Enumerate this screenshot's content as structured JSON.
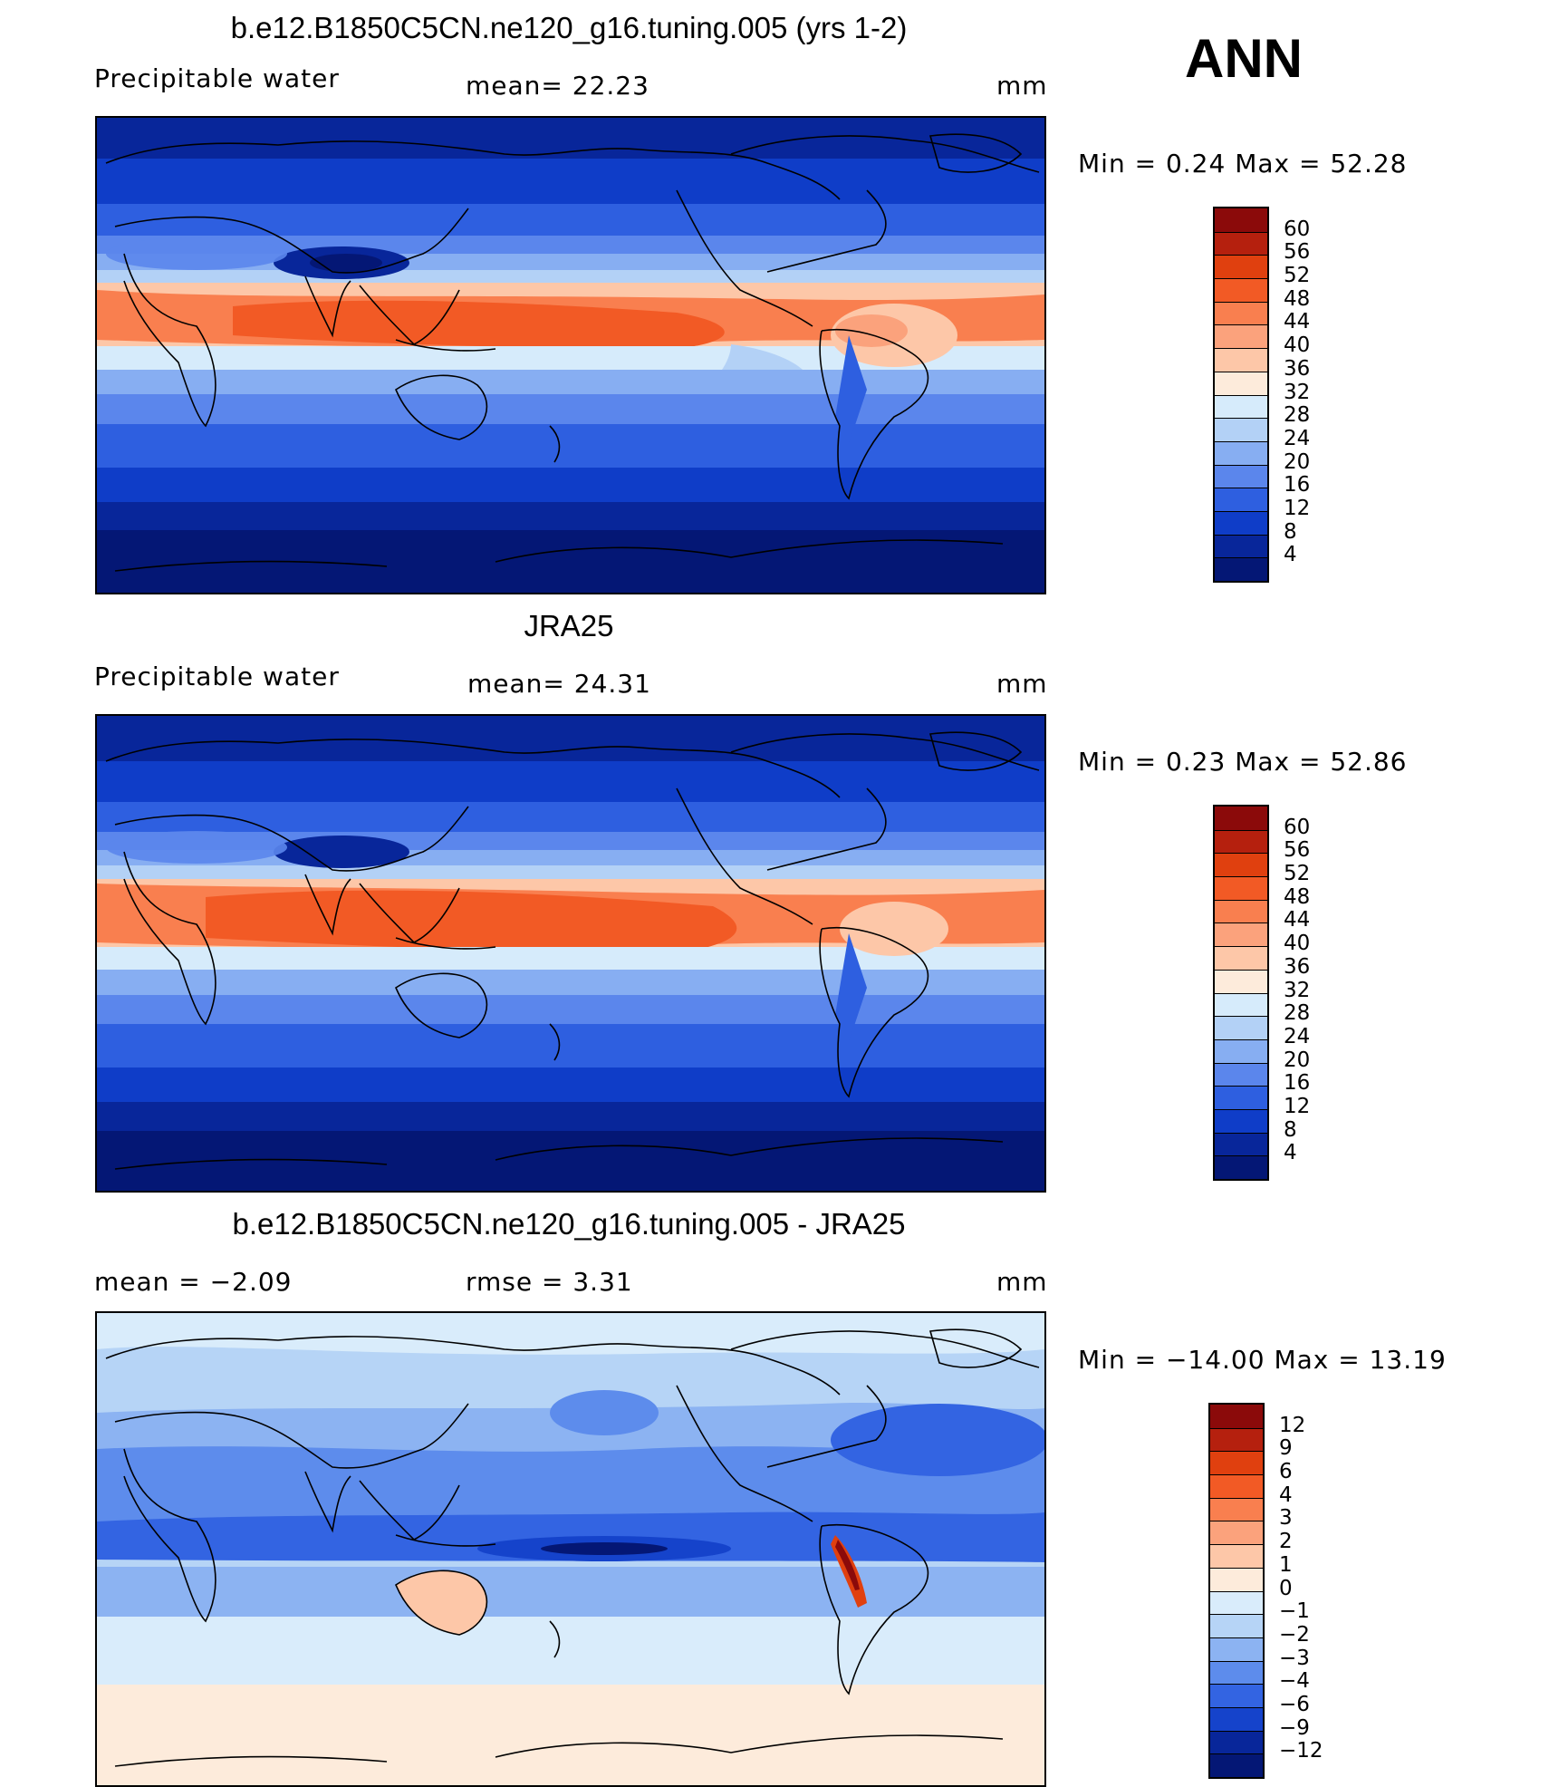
{
  "season": "ANN",
  "panels": [
    {
      "title": "b.e12.B1850C5CN.ne120_g16.tuning.005 (yrs 1-2)",
      "left_label": "Precipitable  water",
      "center_label": "mean=   22.23",
      "units": "mm",
      "minmax": "Min  =     0.24  Max  =    52.28",
      "colorbar_labels": [
        "60",
        "56",
        "52",
        "48",
        "44",
        "40",
        "36",
        "32",
        "28",
        "24",
        "20",
        "16",
        "12",
        "8",
        "4"
      ]
    },
    {
      "title": "JRA25",
      "left_label": "Precipitable  water",
      "center_label": "mean=   24.31",
      "units": "mm",
      "minmax": "Min  =     0.23  Max  =    52.86",
      "colorbar_labels": [
        "60",
        "56",
        "52",
        "48",
        "44",
        "40",
        "36",
        "32",
        "28",
        "24",
        "20",
        "16",
        "12",
        "8",
        "4"
      ]
    },
    {
      "title": "b.e12.B1850C5CN.ne120_g16.tuning.005 - JRA25",
      "left_label": "mean  =    −2.09",
      "center_label": "rmse  =     3.31",
      "units": "mm",
      "minmax": "Min  = −14.00  Max  =    13.19",
      "colorbar_labels": [
        "12",
        "9",
        "6",
        "4",
        "3",
        "2",
        "1",
        "0",
        "−1",
        "−2",
        "−3",
        "−4",
        "−6",
        "−9",
        "−12"
      ]
    }
  ],
  "colors": {
    "abs_scale": [
      "#8b0a0a",
      "#b5200e",
      "#e0400f",
      "#f25a25",
      "#f97f4f",
      "#fba27c",
      "#fdc7a8",
      "#fdebdb",
      "#d6ebfb",
      "#b3d1f6",
      "#87aef2",
      "#5b86ec",
      "#2e5fe0",
      "#0f3dc8",
      "#08269a",
      "#041775"
    ],
    "diff_scale": [
      "#8b0a0a",
      "#b5200e",
      "#e0400f",
      "#f25a25",
      "#f97f4f",
      "#fba27c",
      "#fdc7a8",
      "#fdebdb",
      "#d9ecfb",
      "#b6d4f6",
      "#8cb3f2",
      "#5d8cec",
      "#3364e2",
      "#1543cb",
      "#08269a",
      "#041775"
    ]
  }
}
